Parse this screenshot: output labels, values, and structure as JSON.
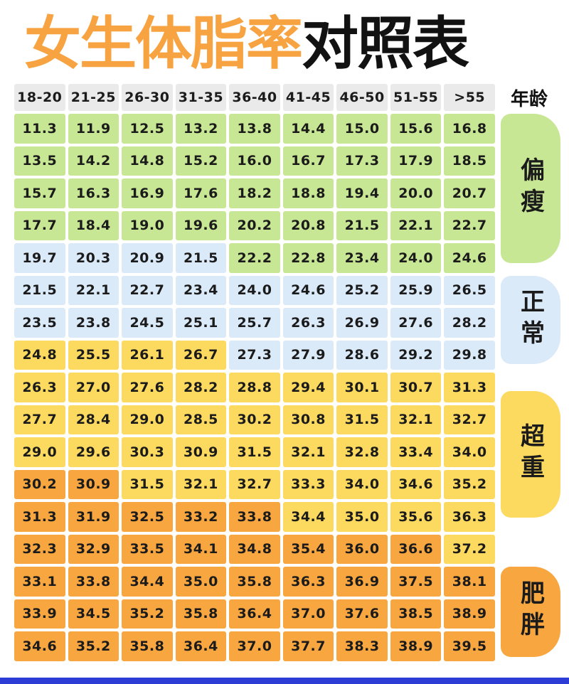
{
  "title": {
    "highlight": "女生体脂率",
    "rest": "对照表"
  },
  "age_axis_label": "年龄",
  "chart_data": {
    "type": "table",
    "title": "女生体脂率对照表",
    "column_axis_label": "年龄",
    "columns": [
      "18-20",
      "21-25",
      "26-30",
      "31-35",
      "36-40",
      "41-45",
      "46-50",
      "51-55",
      ">55"
    ],
    "rows": [
      {
        "values": [
          "11.3",
          "11.9",
          "12.5",
          "13.2",
          "13.8",
          "14.4",
          "15.0",
          "15.6",
          "16.8"
        ],
        "colors": "ggggggggg"
      },
      {
        "values": [
          "13.5",
          "14.2",
          "14.8",
          "15.2",
          "16.0",
          "16.7",
          "17.3",
          "17.9",
          "18.5"
        ],
        "colors": "ggggggggg"
      },
      {
        "values": [
          "15.7",
          "16.3",
          "16.9",
          "17.6",
          "18.2",
          "18.8",
          "19.4",
          "20.0",
          "20.7"
        ],
        "colors": "ggggggggg"
      },
      {
        "values": [
          "17.7",
          "18.4",
          "19.0",
          "19.6",
          "20.2",
          "20.8",
          "21.5",
          "22.1",
          "22.7"
        ],
        "colors": "ggggggggg"
      },
      {
        "values": [
          "19.7",
          "20.3",
          "20.9",
          "21.5",
          "22.2",
          "22.8",
          "23.4",
          "24.0",
          "24.6"
        ],
        "colors": "bbbbggggg"
      },
      {
        "values": [
          "21.5",
          "22.1",
          "22.7",
          "23.4",
          "24.0",
          "24.6",
          "25.2",
          "25.9",
          "26.5"
        ],
        "colors": "bbbbbbbbb"
      },
      {
        "values": [
          "23.5",
          "23.8",
          "24.5",
          "25.1",
          "25.7",
          "26.3",
          "26.9",
          "27.6",
          "28.2"
        ],
        "colors": "bbbbbbbbb"
      },
      {
        "values": [
          "24.8",
          "25.5",
          "26.1",
          "26.7",
          "27.3",
          "27.9",
          "28.6",
          "29.2",
          "29.8"
        ],
        "colors": "yyyybbbbb"
      },
      {
        "values": [
          "26.3",
          "27.0",
          "27.6",
          "28.2",
          "28.8",
          "29.4",
          "30.1",
          "30.7",
          "31.3"
        ],
        "colors": "yyyyyyyyy"
      },
      {
        "values": [
          "27.7",
          "28.4",
          "29.0",
          "28.5",
          "30.2",
          "30.8",
          "31.5",
          "32.1",
          "32.7"
        ],
        "colors": "yyyyyyyyy"
      },
      {
        "values": [
          "29.0",
          "29.6",
          "30.3",
          "30.9",
          "31.5",
          "32.1",
          "32.8",
          "33.4",
          "34.0"
        ],
        "colors": "yyyyyyyyy"
      },
      {
        "values": [
          "30.2",
          "30.9",
          "31.5",
          "32.1",
          "32.7",
          "33.3",
          "34.0",
          "34.6",
          "35.2"
        ],
        "colors": "ooyyyyyyy"
      },
      {
        "values": [
          "31.3",
          "31.9",
          "32.5",
          "33.2",
          "33.8",
          "34.4",
          "35.0",
          "35.6",
          "36.3"
        ],
        "colors": "oooooyyyy"
      },
      {
        "values": [
          "32.3",
          "32.9",
          "33.5",
          "34.1",
          "34.8",
          "35.4",
          "36.0",
          "36.6",
          "37.2"
        ],
        "colors": "ooooooooy"
      },
      {
        "values": [
          "33.1",
          "33.8",
          "34.4",
          "35.0",
          "35.8",
          "36.3",
          "36.9",
          "37.5",
          "38.1"
        ],
        "colors": "ooooooooo"
      },
      {
        "values": [
          "33.9",
          "34.5",
          "35.2",
          "35.8",
          "36.4",
          "37.0",
          "37.6",
          "38.5",
          "38.9"
        ],
        "colors": "ooooooooo"
      },
      {
        "values": [
          "34.6",
          "35.2",
          "35.8",
          "36.4",
          "37.0",
          "37.7",
          "38.3",
          "38.9",
          "39.5"
        ],
        "colors": "ooooooooo"
      }
    ],
    "row_groups": [
      {
        "label": "偏瘦",
        "key": "thin",
        "data_rows": [
          1,
          5
        ]
      },
      {
        "label": "正常",
        "key": "normal",
        "data_rows": [
          6,
          8
        ]
      },
      {
        "label": "超重",
        "key": "overweight",
        "data_rows": [
          10,
          13
        ]
      },
      {
        "label": "肥胖",
        "key": "obese",
        "data_rows": [
          15,
          17
        ]
      }
    ],
    "color_legend": {
      "g": "偏瘦",
      "b": "正常",
      "y": "超重",
      "o": "肥胖"
    }
  },
  "colors": {
    "green": "#c8e794",
    "blue": "#dbeaf9",
    "yellow": "#fcd95f",
    "orange": "#f7a640",
    "header_bg": "#eaeaea",
    "title_accent": "#f7a341",
    "text": "#1d1d1d",
    "bottom_bar": "#2d3cd5"
  }
}
